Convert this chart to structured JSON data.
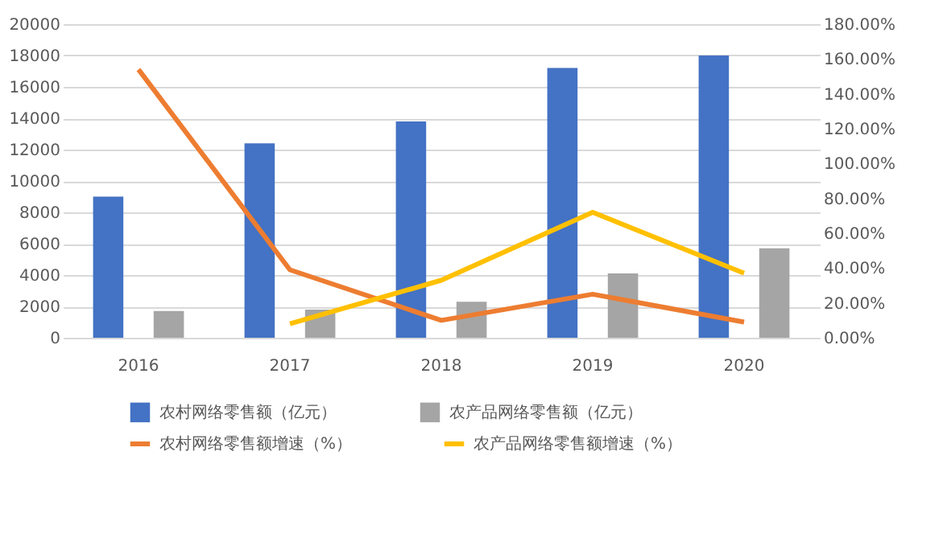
{
  "chart_data": {
    "type": "bar",
    "categories": [
      "2016",
      "2017",
      "2018",
      "2019",
      "2020"
    ],
    "series": [
      {
        "name": "农村网络零售额（亿元）",
        "color": "#4472c4",
        "values": [
          9000,
          12400,
          13800,
          17200,
          18000
        ]
      },
      {
        "name": "农产品网络零售额（亿元）",
        "color": "#a5a5a5",
        "values": [
          1700,
          1800,
          2300,
          4100,
          5700
        ]
      },
      {
        "name": "农村网络零售额增速（%）",
        "type": "line",
        "axis": "y2",
        "color": "#ed7d31",
        "values": [
          154,
          39,
          10,
          25,
          9
        ]
      },
      {
        "name": "农产品网络零售额增速（%）",
        "type": "line",
        "axis": "y2",
        "color": "#ffc000",
        "values": [
          null,
          8,
          33,
          72,
          37
        ]
      }
    ],
    "ylim": [
      0,
      20000
    ],
    "yticks": [
      0,
      2000,
      4000,
      6000,
      8000,
      10000,
      12000,
      14000,
      16000,
      18000,
      20000
    ],
    "y2lim": [
      0,
      180
    ],
    "y2ticks": [
      {
        "value": 0,
        "label": "0.00%"
      },
      {
        "value": 20,
        "label": "20.00%"
      },
      {
        "value": 40,
        "label": "40.00%"
      },
      {
        "value": 60,
        "label": "60.00%"
      },
      {
        "value": 80,
        "label": "80.00%"
      },
      {
        "value": 100,
        "label": "100.00%"
      },
      {
        "value": 120,
        "label": "120.00%"
      },
      {
        "value": 140,
        "label": "140.00%"
      },
      {
        "value": 160,
        "label": "160.00%"
      },
      {
        "value": 180,
        "label": "180.00%"
      }
    ],
    "grid": "y",
    "legend": "bottom",
    "line_style": "solid",
    "marker": "none"
  }
}
